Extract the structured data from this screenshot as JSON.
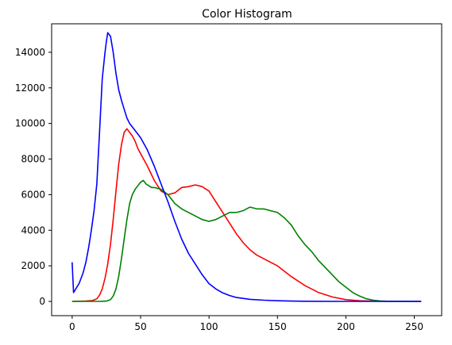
{
  "chart_data": {
    "type": "line",
    "title": "Color Histogram",
    "xlabel": "",
    "ylabel": "",
    "xlim": [
      -15,
      270
    ],
    "ylim": [
      -800,
      15600
    ],
    "xticks": [
      0,
      50,
      100,
      150,
      200,
      250
    ],
    "yticks": [
      0,
      2000,
      4000,
      6000,
      8000,
      10000,
      12000,
      14000
    ],
    "grid": false,
    "legend": "none",
    "series": [
      {
        "color": "#ff0000",
        "x": [
          0,
          10,
          15,
          18,
          20,
          22,
          24,
          26,
          28,
          30,
          32,
          34,
          36,
          38,
          40,
          42,
          44,
          46,
          48,
          50,
          55,
          60,
          65,
          70,
          75,
          80,
          85,
          90,
          95,
          100,
          105,
          110,
          115,
          120,
          125,
          130,
          135,
          140,
          145,
          150,
          160,
          170,
          180,
          190,
          200,
          210,
          220,
          230,
          240,
          255
        ],
        "y": [
          0,
          20,
          50,
          150,
          350,
          700,
          1300,
          2100,
          3200,
          4600,
          6200,
          7700,
          8800,
          9500,
          9700,
          9500,
          9300,
          9000,
          8600,
          8300,
          7600,
          6800,
          6200,
          6000,
          6100,
          6400,
          6450,
          6550,
          6450,
          6200,
          5600,
          5000,
          4400,
          3800,
          3300,
          2900,
          2600,
          2400,
          2200,
          2000,
          1400,
          900,
          500,
          250,
          100,
          40,
          15,
          5,
          2,
          0
        ]
      },
      {
        "color": "#008000",
        "x": [
          0,
          20,
          25,
          28,
          30,
          32,
          34,
          36,
          38,
          40,
          42,
          44,
          46,
          48,
          50,
          52,
          54,
          56,
          58,
          60,
          65,
          70,
          75,
          80,
          85,
          90,
          95,
          100,
          105,
          110,
          115,
          120,
          125,
          130,
          135,
          140,
          145,
          150,
          155,
          160,
          165,
          170,
          175,
          180,
          185,
          190,
          195,
          200,
          205,
          210,
          215,
          220,
          225,
          230,
          240,
          255
        ],
        "y": [
          0,
          0,
          20,
          100,
          300,
          700,
          1400,
          2400,
          3500,
          4600,
          5500,
          6000,
          6300,
          6500,
          6700,
          6800,
          6600,
          6500,
          6400,
          6400,
          6300,
          6000,
          5500,
          5200,
          5000,
          4800,
          4600,
          4500,
          4600,
          4800,
          5000,
          5000,
          5100,
          5300,
          5200,
          5200,
          5100,
          5000,
          4700,
          4300,
          3700,
          3200,
          2800,
          2300,
          1900,
          1500,
          1100,
          800,
          500,
          300,
          150,
          70,
          30,
          10,
          5,
          0
        ]
      },
      {
        "color": "#0000ff",
        "x": [
          0,
          1,
          5,
          8,
          10,
          12,
          14,
          16,
          18,
          20,
          22,
          24,
          25,
          26,
          28,
          30,
          32,
          34,
          36,
          38,
          40,
          42,
          45,
          50,
          55,
          60,
          65,
          70,
          75,
          80,
          85,
          90,
          95,
          100,
          105,
          110,
          115,
          120,
          130,
          140,
          150,
          160,
          170,
          180,
          200,
          220,
          240,
          255
        ],
        "y": [
          2200,
          500,
          1000,
          1600,
          2200,
          3000,
          4000,
          5100,
          6600,
          9500,
          12500,
          14000,
          14600,
          15100,
          14900,
          14000,
          12800,
          11900,
          11300,
          10800,
          10300,
          10000,
          9700,
          9200,
          8500,
          7600,
          6600,
          5600,
          4500,
          3500,
          2700,
          2100,
          1500,
          1000,
          700,
          480,
          330,
          220,
          120,
          70,
          40,
          20,
          10,
          5,
          2,
          1,
          0,
          0
        ]
      }
    ]
  }
}
